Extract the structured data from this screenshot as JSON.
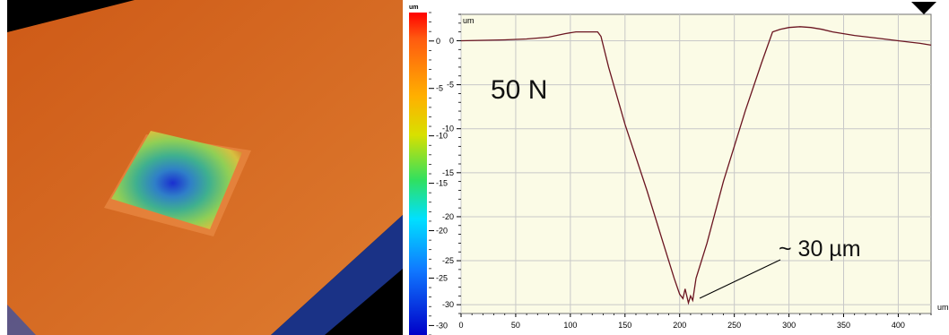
{
  "chart_data": {
    "type": "line",
    "title": "",
    "xlabel": "",
    "ylabel": "um",
    "x_unit": "um",
    "y_unit": "um",
    "xlim": [
      0,
      430
    ],
    "ylim": [
      -31,
      3
    ],
    "grid": true,
    "x_ticks": [
      0,
      50,
      100,
      150,
      200,
      250,
      300,
      350,
      400
    ],
    "y_ticks": [
      0,
      -5,
      -10,
      -15,
      -20,
      -25,
      -30
    ],
    "annotations": {
      "load_label": "50 N",
      "depth_label": "~ 30 µm"
    },
    "series": [
      {
        "x": [
          0,
          20,
          40,
          60,
          80,
          95,
          105,
          110,
          115,
          120,
          125,
          128,
          135,
          150,
          170,
          185,
          195,
          200,
          203,
          205,
          208,
          210,
          212,
          215,
          225,
          240,
          260,
          275,
          285,
          292,
          300,
          310,
          320,
          330,
          340,
          360,
          380,
          400,
          420,
          430
        ],
        "y": [
          0.0,
          0.05,
          0.1,
          0.2,
          0.4,
          0.8,
          1.0,
          1.0,
          1.0,
          1.0,
          1.0,
          0.5,
          -3.0,
          -9.5,
          -17.0,
          -23.0,
          -27.0,
          -28.8,
          -29.3,
          -28.2,
          -29.8,
          -29.0,
          -29.5,
          -27.0,
          -23.0,
          -16.0,
          -8.0,
          -2.5,
          1.0,
          1.3,
          1.5,
          1.6,
          1.5,
          1.3,
          1.0,
          0.6,
          0.3,
          0.0,
          -0.3,
          -0.5
        ]
      }
    ],
    "colorbar": {
      "unit": "um",
      "ticks": [
        0,
        -5,
        -10,
        -15,
        -20,
        -25,
        -30
      ],
      "range": [
        3,
        -31
      ]
    }
  }
}
